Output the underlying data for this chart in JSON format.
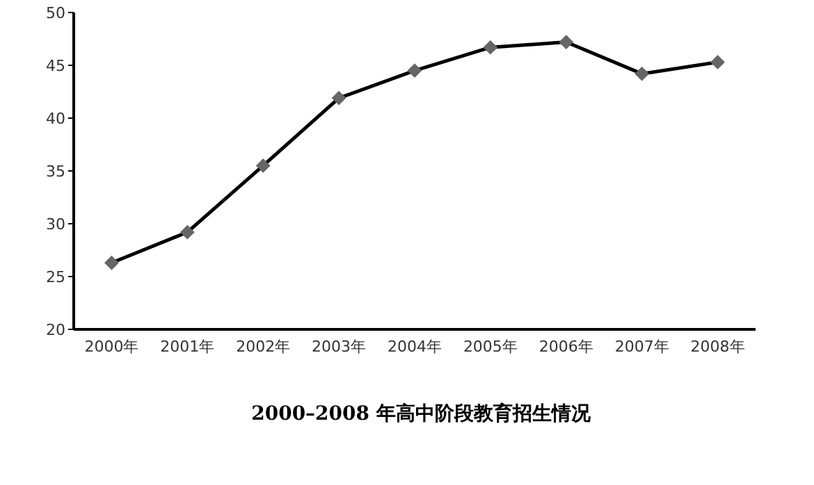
{
  "chart_data": {
    "type": "line",
    "title": "2000–2008 年高中阶段教育招生情况",
    "categories": [
      "2000年",
      "2001年",
      "2002年",
      "2003年",
      "2004年",
      "2005年",
      "2006年",
      "2007年",
      "2008年"
    ],
    "series": [
      {
        "color": "#000000",
        "values": [
          26.3,
          29.2,
          35.5,
          41.9,
          44.5,
          46.7,
          47.2,
          44.2,
          45.3
        ]
      }
    ],
    "ylim": [
      20,
      50
    ],
    "yticks": [
      20,
      25,
      30,
      35,
      40,
      45,
      50
    ],
    "grid": false,
    "legend": false,
    "marker": "diamond",
    "line_style": "solid"
  }
}
